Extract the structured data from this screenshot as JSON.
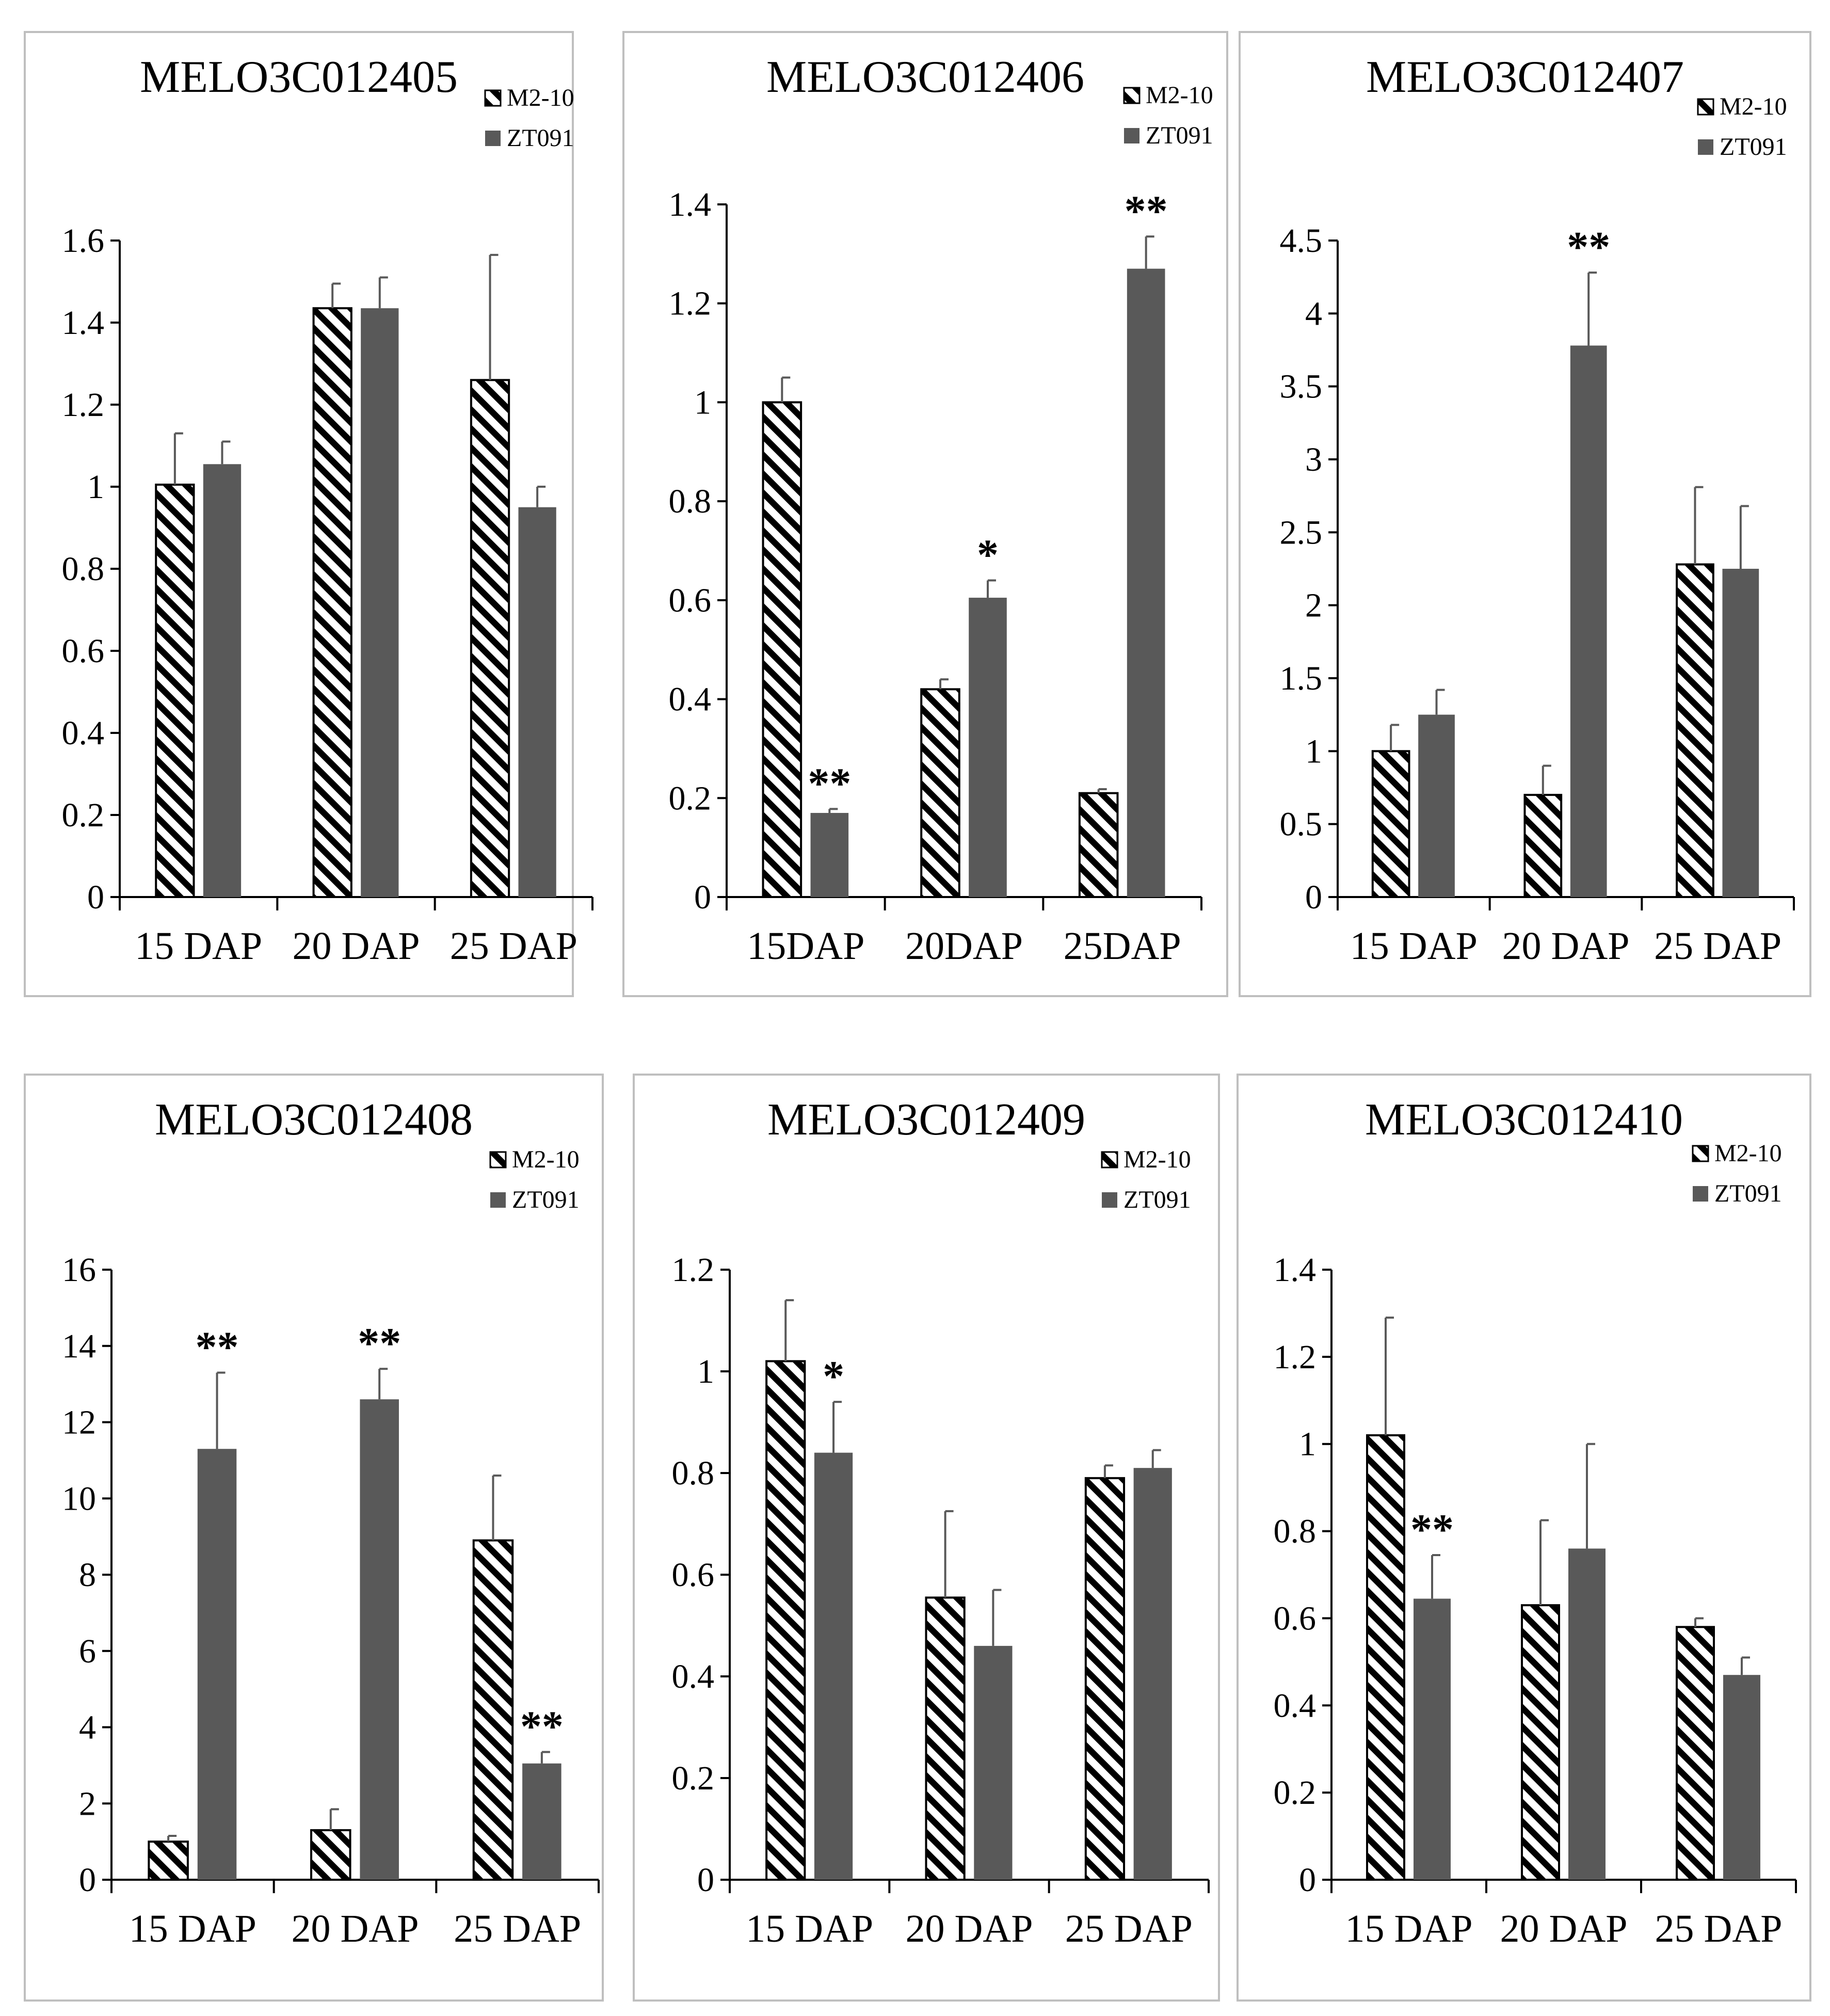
{
  "colors": {
    "zt091": "#595959",
    "hatch_line": "#000000",
    "panel_border": "#bfbfbf",
    "axis": "#000000"
  },
  "legend_entries": [
    "M2-10",
    "ZT091"
  ],
  "chart_data": [
    {
      "type": "bar",
      "title": "MELO3C012405",
      "categories": [
        "15 DAP",
        "20 DAP",
        "25 DAP"
      ],
      "ylim": [
        0,
        1.6
      ],
      "yticks": [
        "0",
        "0.2",
        "0.4",
        "0.6",
        "0.8",
        "1",
        "1.2",
        "1.4",
        "1.6"
      ],
      "legend_position": "top-right",
      "series": [
        {
          "name": "M2-10",
          "pattern": "hatch",
          "values": [
            1.005,
            1.435,
            1.26
          ],
          "errors": [
            0.125,
            0.06,
            0.305
          ]
        },
        {
          "name": "ZT091",
          "pattern": "solid",
          "values": [
            1.055,
            1.435,
            0.95
          ],
          "errors": [
            0.055,
            0.075,
            0.05
          ]
        }
      ],
      "annotations": [
        [
          "",
          ""
        ],
        [
          "",
          ""
        ],
        [
          "",
          ""
        ]
      ]
    },
    {
      "type": "bar",
      "title": "MELO3C012406",
      "categories": [
        "15DAP",
        "20DAP",
        "25DAP"
      ],
      "ylim": [
        0,
        1.4
      ],
      "yticks": [
        "0",
        "0.2",
        "0.4",
        "0.6",
        "0.8",
        "1",
        "1.2",
        "1.4"
      ],
      "legend_position": "top-right",
      "series": [
        {
          "name": "M2-10",
          "pattern": "hatch",
          "values": [
            1.0,
            0.42,
            0.21
          ],
          "errors": [
            0.05,
            0.02,
            0.008
          ]
        },
        {
          "name": "ZT091",
          "pattern": "solid",
          "values": [
            0.17,
            0.605,
            1.27
          ],
          "errors": [
            0.008,
            0.035,
            0.065
          ]
        }
      ],
      "annotations": [
        [
          "",
          "**"
        ],
        [
          "",
          "*"
        ],
        [
          "",
          "**"
        ]
      ]
    },
    {
      "type": "bar",
      "title": "MELO3C012407",
      "categories": [
        "15 DAP",
        "20 DAP",
        "25 DAP"
      ],
      "ylim": [
        0,
        4.5
      ],
      "yticks": [
        "0",
        "0.5",
        "1",
        "1.5",
        "2",
        "2.5",
        "3",
        "3.5",
        "4",
        "4.5"
      ],
      "legend_position": "top-right",
      "series": [
        {
          "name": "M2-10",
          "pattern": "hatch",
          "values": [
            1.0,
            0.7,
            2.28
          ],
          "errors": [
            0.18,
            0.2,
            0.53
          ]
        },
        {
          "name": "ZT091",
          "pattern": "solid",
          "values": [
            1.25,
            3.78,
            2.25
          ],
          "errors": [
            0.17,
            0.5,
            0.43
          ]
        }
      ],
      "annotations": [
        [
          "",
          ""
        ],
        [
          "",
          "**"
        ],
        [
          "",
          ""
        ]
      ]
    },
    {
      "type": "bar",
      "title": "MELO3C012408",
      "categories": [
        "15 DAP",
        "20 DAP",
        "25 DAP"
      ],
      "ylim": [
        0,
        16
      ],
      "yticks": [
        "0",
        "2",
        "4",
        "6",
        "8",
        "10",
        "12",
        "14",
        "16"
      ],
      "legend_position": "top-right",
      "series": [
        {
          "name": "M2-10",
          "pattern": "hatch",
          "values": [
            1.0,
            1.3,
            8.9
          ],
          "errors": [
            0.15,
            0.55,
            1.7
          ]
        },
        {
          "name": "ZT091",
          "pattern": "solid",
          "values": [
            11.3,
            12.6,
            3.05
          ],
          "errors": [
            2.0,
            0.8,
            0.3
          ]
        }
      ],
      "annotations": [
        [
          "",
          "**"
        ],
        [
          "",
          "**"
        ],
        [
          "",
          "**"
        ]
      ]
    },
    {
      "type": "bar",
      "title": "MELO3C012409",
      "categories": [
        "15 DAP",
        "20 DAP",
        "25 DAP"
      ],
      "ylim": [
        0,
        1.2
      ],
      "yticks": [
        "0",
        "0.2",
        "0.4",
        "0.6",
        "0.8",
        "1",
        "1.2"
      ],
      "legend_position": "top-right",
      "series": [
        {
          "name": "M2-10",
          "pattern": "hatch",
          "values": [
            1.02,
            0.555,
            0.79
          ],
          "errors": [
            0.12,
            0.17,
            0.025
          ]
        },
        {
          "name": "ZT091",
          "pattern": "solid",
          "values": [
            0.84,
            0.46,
            0.81
          ],
          "errors": [
            0.1,
            0.11,
            0.035
          ]
        }
      ],
      "annotations": [
        [
          "",
          "*"
        ],
        [
          "",
          ""
        ],
        [
          "",
          ""
        ]
      ]
    },
    {
      "type": "bar",
      "title": "MELO3C012410",
      "categories": [
        "15 DAP",
        "20 DAP",
        "25 DAP"
      ],
      "ylim": [
        0,
        1.4
      ],
      "yticks": [
        "0",
        "0.2",
        "0.4",
        "0.6",
        "0.8",
        "1",
        "1.2",
        "1.4"
      ],
      "legend_position": "top-right",
      "series": [
        {
          "name": "M2-10",
          "pattern": "hatch",
          "values": [
            1.02,
            0.63,
            0.58
          ],
          "errors": [
            0.27,
            0.195,
            0.02
          ]
        },
        {
          "name": "ZT091",
          "pattern": "solid",
          "values": [
            0.645,
            0.76,
            0.47
          ],
          "errors": [
            0.1,
            0.24,
            0.04
          ]
        }
      ],
      "annotations": [
        [
          "",
          "**"
        ],
        [
          "",
          ""
        ],
        [
          "",
          ""
        ]
      ]
    }
  ]
}
